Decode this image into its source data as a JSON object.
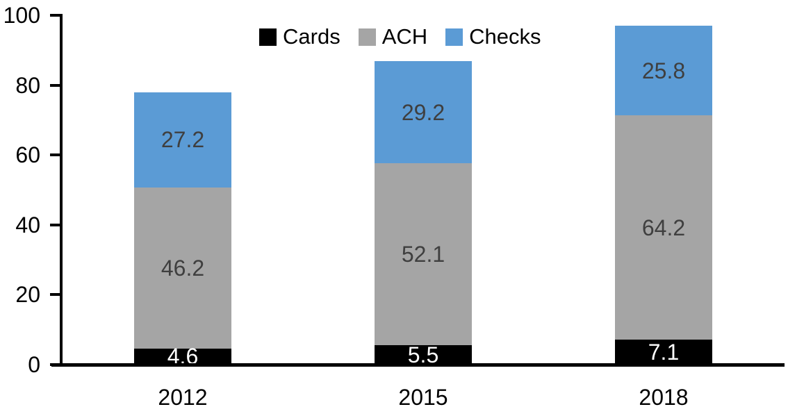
{
  "chart_data": {
    "type": "bar",
    "stacked": true,
    "title": "",
    "categories": [
      "2012",
      "2015",
      "2018"
    ],
    "series": [
      {
        "name": "Cards",
        "color": "#000000",
        "label_color": "#FFFFFF",
        "values": [
          4.6,
          5.5,
          7.1
        ]
      },
      {
        "name": "ACH",
        "color": "#A5A5A5",
        "label_color": "#3F3F3F",
        "values": [
          46.2,
          52.1,
          64.2
        ]
      },
      {
        "name": "Checks",
        "color": "#5B9BD5",
        "label_color": "#3F3F3F",
        "values": [
          27.2,
          29.2,
          25.8
        ]
      }
    ],
    "ylim": [
      0,
      100
    ],
    "yticks": [
      0,
      20,
      40,
      60,
      80,
      100
    ],
    "grid": false,
    "legend_position": "top-center",
    "axis_color": "#000000",
    "background": "#FFFFFF"
  }
}
